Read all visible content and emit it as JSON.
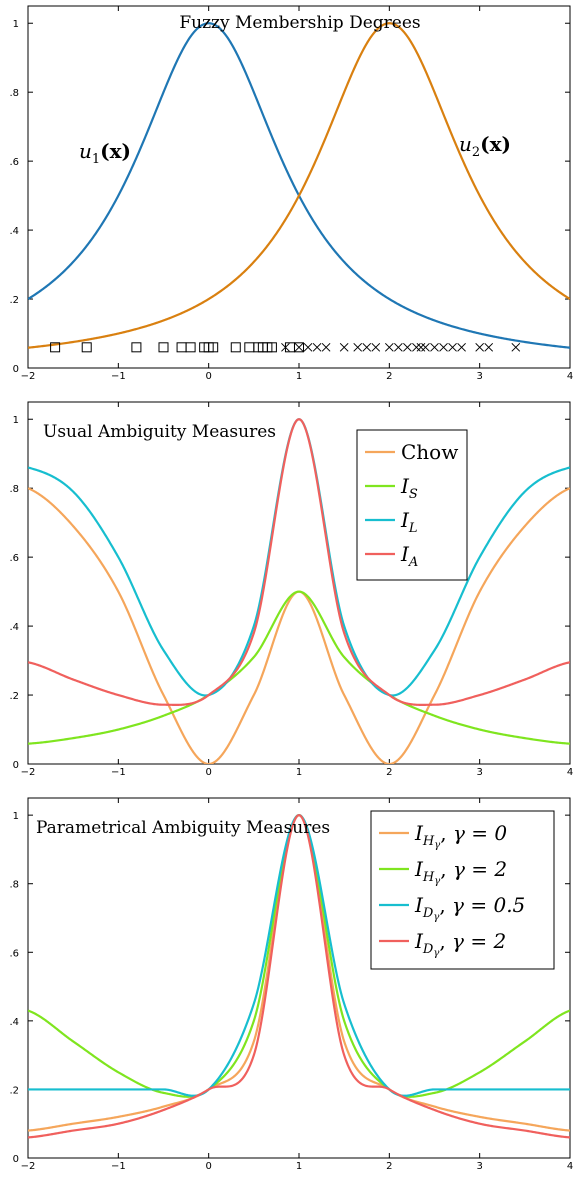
{
  "chart_data": [
    {
      "type": "line",
      "title": "Fuzzy Membership Degrees",
      "xlim": [
        -2,
        4
      ],
      "ylim": [
        0,
        1.05
      ],
      "xticks": [
        "−2",
        "−1",
        "0",
        "1",
        "2",
        "3",
        "4"
      ],
      "yticks": [
        "0",
        ".2",
        ".4",
        ".6",
        ".8",
        "1"
      ],
      "grid": false,
      "legend": "none",
      "series": [
        {
          "name": "u1(x)",
          "color": "#1f77b4",
          "x": [
            -2,
            -1.5,
            -1,
            -0.5,
            0,
            0.5,
            1,
            1.5,
            2,
            2.5,
            3,
            3.5,
            4
          ],
          "y": [
            0.2,
            0.31,
            0.5,
            0.8,
            1.0,
            0.8,
            0.5,
            0.31,
            0.2,
            0.14,
            0.1,
            0.075,
            0.059
          ]
        },
        {
          "name": "u2(x)",
          "color": "#d98010",
          "x": [
            -2,
            -1.5,
            -1,
            -0.5,
            0,
            0.5,
            1,
            1.5,
            2,
            2.5,
            3,
            3.5,
            4
          ],
          "y": [
            0.059,
            0.075,
            0.1,
            0.14,
            0.2,
            0.31,
            0.5,
            0.8,
            1.0,
            0.8,
            0.5,
            0.31,
            0.2
          ]
        }
      ],
      "annotations": [
        {
          "base": "u",
          "sub": "1",
          "arg": "(x)"
        },
        {
          "base": "u",
          "sub": "2",
          "arg": "(x)"
        }
      ],
      "markers": {
        "squares": [
          -1.7,
          -1.35,
          -0.8,
          -0.5,
          -0.3,
          -0.2,
          -0.05,
          0.0,
          0.05,
          0.3,
          0.45,
          0.55,
          0.6,
          0.65,
          0.7,
          0.9,
          1.0
        ],
        "crosses": [
          0.85,
          1.0,
          1.1,
          1.2,
          1.3,
          1.5,
          1.65,
          1.75,
          1.85,
          2.0,
          2.1,
          2.2,
          2.3,
          2.35,
          2.4,
          2.5,
          2.6,
          2.7,
          2.8,
          3.0,
          3.1,
          3.4
        ]
      }
    },
    {
      "type": "line",
      "title": "Usual Ambiguity Measures",
      "xlim": [
        -2,
        4
      ],
      "ylim": [
        0,
        1.05
      ],
      "xticks": [
        "−2",
        "−1",
        "0",
        "1",
        "2",
        "3",
        "4"
      ],
      "yticks": [
        "0",
        ".2",
        ".4",
        ".6",
        ".8",
        "1"
      ],
      "grid": false,
      "legend": "top-right",
      "series": [
        {
          "name": "Chow",
          "label_main": "Chow",
          "label_sub": "",
          "color": "#f5a65b",
          "x": [
            -2,
            -1.5,
            -1,
            -0.5,
            0,
            0.5,
            1,
            1.5,
            2,
            2.5,
            3,
            3.5,
            4
          ],
          "y": [
            0.8,
            0.69,
            0.5,
            0.2,
            0.0,
            0.2,
            0.5,
            0.2,
            0.0,
            0.2,
            0.5,
            0.69,
            0.8
          ]
        },
        {
          "name": "I_S",
          "label_main": "I",
          "label_sub": "S",
          "color": "#7fe51f",
          "x": [
            -2,
            -1.5,
            -1,
            -0.5,
            0,
            0.5,
            1,
            1.5,
            2,
            2.5,
            3,
            3.5,
            4
          ],
          "y": [
            0.059,
            0.075,
            0.1,
            0.14,
            0.2,
            0.31,
            0.5,
            0.31,
            0.2,
            0.14,
            0.1,
            0.075,
            0.059
          ]
        },
        {
          "name": "I_L",
          "label_main": "I",
          "label_sub": "L",
          "color": "#17becf",
          "x": [
            -2,
            -1.5,
            -1,
            -0.5,
            0,
            0.5,
            1,
            1.5,
            2,
            2.5,
            3,
            3.5,
            4
          ],
          "y": [
            0.86,
            0.79,
            0.6,
            0.33,
            0.2,
            0.4,
            1.0,
            0.4,
            0.2,
            0.33,
            0.6,
            0.79,
            0.86
          ]
        },
        {
          "name": "I_A",
          "label_main": "I",
          "label_sub": "A",
          "color": "#f0605d",
          "x": [
            -2,
            -1.5,
            -1,
            -0.5,
            0,
            0.5,
            1,
            1.5,
            2,
            2.5,
            3,
            3.5,
            4
          ],
          "y": [
            0.295,
            0.245,
            0.2,
            0.172,
            0.2,
            0.38,
            1.0,
            0.38,
            0.2,
            0.172,
            0.2,
            0.245,
            0.295
          ]
        }
      ]
    },
    {
      "type": "line",
      "title": "Parametrical Ambiguity Measures",
      "xlim": [
        -2,
        4
      ],
      "ylim": [
        0,
        1.05
      ],
      "xticks": [
        "−2",
        "−1",
        "0",
        "1",
        "2",
        "3",
        "4"
      ],
      "yticks": [
        "0",
        ".2",
        ".4",
        ".6",
        ".8",
        "1"
      ],
      "grid": false,
      "legend": "top-right",
      "series": [
        {
          "name": "I_H_γ, γ = 0",
          "label_main": "I",
          "label_sub": "H",
          "label_subsub": "γ",
          "label_param": "γ = 0",
          "color": "#f5a65b",
          "x": [
            -2,
            -1.5,
            -1,
            -0.5,
            0,
            0.5,
            1,
            1.5,
            2,
            2.5,
            3,
            3.5,
            4
          ],
          "y": [
            0.08,
            0.1,
            0.12,
            0.15,
            0.2,
            0.34,
            1.0,
            0.34,
            0.2,
            0.15,
            0.12,
            0.1,
            0.08
          ]
        },
        {
          "name": "I_H_γ, γ = 2",
          "label_main": "I",
          "label_sub": "H",
          "label_subsub": "γ",
          "label_param": "γ = 2",
          "color": "#7fe51f",
          "x": [
            -2,
            -1.5,
            -1,
            -0.5,
            0,
            0.5,
            1,
            1.5,
            2,
            2.5,
            3,
            3.5,
            4
          ],
          "y": [
            0.43,
            0.34,
            0.25,
            0.19,
            0.2,
            0.4,
            1.0,
            0.4,
            0.2,
            0.19,
            0.25,
            0.34,
            0.43
          ]
        },
        {
          "name": "I_D_γ, γ = 0.5",
          "label_main": "I",
          "label_sub": "D",
          "label_subsub": "γ",
          "label_param": "γ = 0.5",
          "color": "#17becf",
          "x": [
            -2,
            -1.5,
            -1,
            -0.5,
            0,
            0.5,
            1,
            1.5,
            2,
            2.5,
            3,
            3.5,
            4
          ],
          "y": [
            0.2,
            0.2,
            0.2,
            0.2,
            0.2,
            0.45,
            1.0,
            0.45,
            0.2,
            0.2,
            0.2,
            0.2,
            0.2
          ]
        },
        {
          "name": "I_D_γ, γ = 2",
          "label_main": "I",
          "label_sub": "D",
          "label_subsub": "γ",
          "label_param": "γ = 2",
          "color": "#f0605d",
          "x": [
            -2,
            -1.5,
            -1,
            -0.5,
            0,
            0.5,
            1,
            1.5,
            2,
            2.5,
            3,
            3.5,
            4
          ],
          "y": [
            0.06,
            0.08,
            0.1,
            0.14,
            0.2,
            0.3,
            1.0,
            0.3,
            0.2,
            0.14,
            0.1,
            0.08,
            0.06
          ]
        }
      ]
    }
  ]
}
